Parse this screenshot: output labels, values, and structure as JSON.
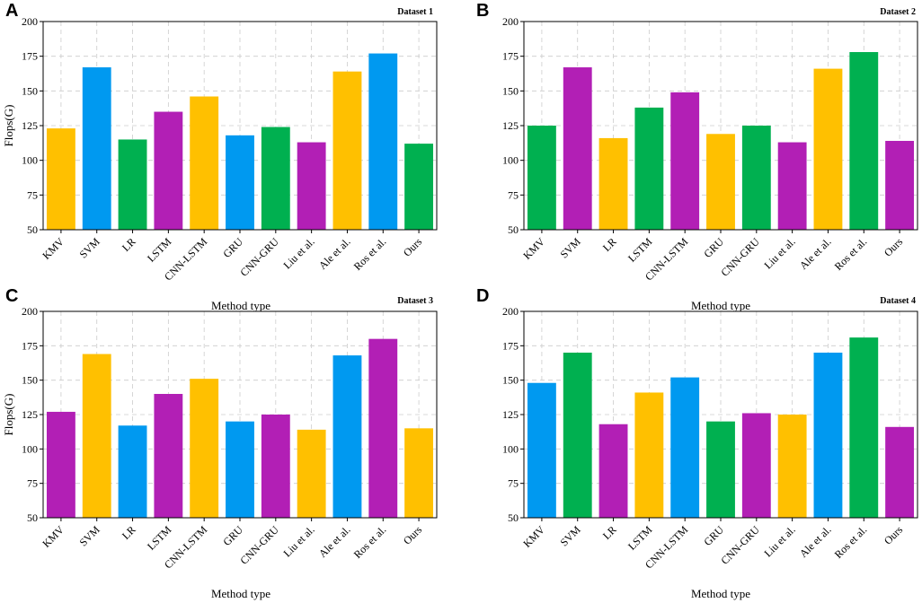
{
  "chart_data": [
    {
      "type": "bar",
      "panel": "A",
      "title": "Dataset 1",
      "xlabel": "Method type",
      "ylabel": "Flops(G)",
      "ylim": [
        50,
        200
      ],
      "yticks": [
        50,
        75,
        100,
        125,
        150,
        175,
        200
      ],
      "grid": true,
      "categories": [
        "KMV",
        "SVM",
        "LR",
        "LSTM",
        "CNN-LSTM",
        "GRU",
        "CNN-GRU",
        "Liu et al.",
        "Ale et al.",
        "Ros et al.",
        "Ours"
      ],
      "values": [
        123,
        167,
        115,
        135,
        146,
        118,
        124,
        113,
        164,
        177,
        112
      ],
      "colors": [
        "#ffc000",
        "#0099f0",
        "#00b050",
        "#b21fb5",
        "#ffc000",
        "#0099f0",
        "#00b050",
        "#b21fb5",
        "#ffc000",
        "#0099f0",
        "#00b050"
      ]
    },
    {
      "type": "bar",
      "panel": "B",
      "title": "Dataset 2",
      "xlabel": "Method type",
      "ylabel": "",
      "ylim": [
        50,
        200
      ],
      "yticks": [
        50,
        75,
        100,
        125,
        150,
        175,
        200
      ],
      "grid": true,
      "categories": [
        "KMV",
        "SVM",
        "LR",
        "LSTM",
        "CNN-LSTM",
        "GRU",
        "CNN-GRU",
        "Liu et al.",
        "Ale et al.",
        "Ros et al.",
        "Ours"
      ],
      "values": [
        125,
        167,
        116,
        138,
        149,
        119,
        125,
        113,
        166,
        178,
        114
      ],
      "colors": [
        "#00b050",
        "#b21fb5",
        "#ffc000",
        "#00b050",
        "#b21fb5",
        "#ffc000",
        "#00b050",
        "#b21fb5",
        "#ffc000",
        "#00b050",
        "#b21fb5"
      ]
    },
    {
      "type": "bar",
      "panel": "C",
      "title": "Dataset 3",
      "xlabel": "Method type",
      "ylabel": "Flops(G)",
      "ylim": [
        50,
        200
      ],
      "yticks": [
        50,
        75,
        100,
        125,
        150,
        175,
        200
      ],
      "grid": true,
      "categories": [
        "KMV",
        "SVM",
        "LR",
        "LSTM",
        "CNN-LSTM",
        "GRU",
        "CNN-GRU",
        "Liu et al.",
        "Ale et al.",
        "Ros et al.",
        "Ours"
      ],
      "values": [
        127,
        169,
        117,
        140,
        151,
        120,
        125,
        114,
        168,
        180,
        115
      ],
      "colors": [
        "#b21fb5",
        "#ffc000",
        "#0099f0",
        "#b21fb5",
        "#ffc000",
        "#0099f0",
        "#b21fb5",
        "#ffc000",
        "#0099f0",
        "#b21fb5",
        "#ffc000"
      ]
    },
    {
      "type": "bar",
      "panel": "D",
      "title": "Dataset 4",
      "xlabel": "Method type",
      "ylabel": "",
      "ylim": [
        50,
        200
      ],
      "yticks": [
        50,
        75,
        100,
        125,
        150,
        175,
        200
      ],
      "grid": true,
      "categories": [
        "KMV",
        "SVM",
        "LR",
        "LSTM",
        "CNN-LSTM",
        "GRU",
        "CNN-GRU",
        "Liu et al.",
        "Ale et al.",
        "Ros et al.",
        "Ours"
      ],
      "values": [
        148,
        170,
        118,
        141,
        152,
        120,
        126,
        125,
        170,
        181,
        116
      ],
      "colors": [
        "#0099f0",
        "#00b050",
        "#b21fb5",
        "#ffc000",
        "#0099f0",
        "#00b050",
        "#b21fb5",
        "#ffc000",
        "#0099f0",
        "#00b050",
        "#b21fb5"
      ]
    }
  ]
}
